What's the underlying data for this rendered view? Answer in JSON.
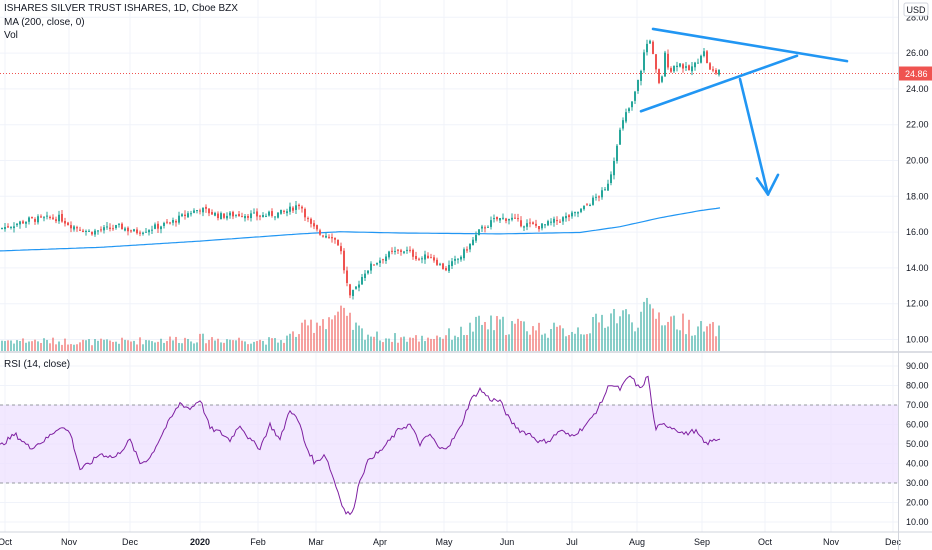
{
  "legend": {
    "title": "ISHARES SILVER TRUST ISHARES, 1D, Cboe BZX",
    "ma": "MA (200, close, 0)",
    "vol": "Vol",
    "rsi": "RSI (14, close)"
  },
  "price_axis": {
    "currency": "USD",
    "last_price_label": "24.86"
  },
  "colors": {
    "up": "#26a69a",
    "down": "#ef5350",
    "ma": "#2196f3",
    "rsi_line": "#7e1fa1",
    "rsi_band": "#ede0ff",
    "drawing": "#2196f3",
    "last_price": "#ef5350"
  },
  "chart_data": {
    "type": "candlestick",
    "title": "ISHARES SILVER TRUST ISHARES, 1D, Cboe BZX",
    "price_ylim": [
      9.2,
      28.8
    ],
    "price_ticks": [
      "10.00",
      "12.00",
      "14.00",
      "16.00",
      "18.00",
      "20.00",
      "22.00",
      "24.00",
      "26.00",
      "28.00"
    ],
    "last_price": 24.86,
    "months": [
      "Oct",
      "Nov",
      "Dec",
      "2020",
      "Feb",
      "Mar",
      "Apr",
      "May",
      "Jun",
      "Jul",
      "Aug",
      "Sep",
      "Oct",
      "Nov",
      "Dec"
    ],
    "price_keypoints": [
      [
        0,
        16.2
      ],
      [
        30,
        16.7
      ],
      [
        60,
        16.8
      ],
      [
        70,
        16.4
      ],
      [
        90,
        16.0
      ],
      [
        120,
        16.3
      ],
      [
        135,
        16.0
      ],
      [
        150,
        16.2
      ],
      [
        170,
        16.5
      ],
      [
        190,
        17.1
      ],
      [
        200,
        17.3
      ],
      [
        220,
        16.9
      ],
      [
        240,
        17.0
      ],
      [
        260,
        16.9
      ],
      [
        285,
        17.1
      ],
      [
        300,
        17.6
      ],
      [
        310,
        16.4
      ],
      [
        320,
        15.9
      ],
      [
        332,
        15.8
      ],
      [
        340,
        15.2
      ],
      [
        345,
        13.6
      ],
      [
        350,
        12.3
      ],
      [
        357,
        13.0
      ],
      [
        365,
        13.8
      ],
      [
        375,
        14.3
      ],
      [
        390,
        14.8
      ],
      [
        405,
        15.0
      ],
      [
        420,
        14.5
      ],
      [
        430,
        14.7
      ],
      [
        445,
        13.9
      ],
      [
        460,
        14.6
      ],
      [
        470,
        15.3
      ],
      [
        480,
        16.1
      ],
      [
        495,
        16.7
      ],
      [
        510,
        16.8
      ],
      [
        520,
        16.5
      ],
      [
        540,
        16.3
      ],
      [
        560,
        16.7
      ],
      [
        575,
        17.0
      ],
      [
        585,
        17.4
      ],
      [
        595,
        17.9
      ],
      [
        605,
        18.3
      ],
      [
        612,
        19.5
      ],
      [
        618,
        21.3
      ],
      [
        625,
        22.5
      ],
      [
        632,
        23.2
      ],
      [
        640,
        24.8
      ],
      [
        645,
        26.3
      ],
      [
        650,
        26.8
      ],
      [
        655,
        25.2
      ],
      [
        660,
        24.0
      ],
      [
        665,
        25.9
      ],
      [
        670,
        25.0
      ],
      [
        678,
        25.5
      ],
      [
        688,
        25.0
      ],
      [
        696,
        25.4
      ],
      [
        703,
        26.2
      ],
      [
        710,
        25.0
      ],
      [
        717,
        24.9
      ],
      [
        720,
        25.2
      ]
    ],
    "ma_keypoints": [
      [
        0,
        14.95
      ],
      [
        100,
        15.15
      ],
      [
        200,
        15.5
      ],
      [
        300,
        15.9
      ],
      [
        340,
        16.02
      ],
      [
        400,
        15.95
      ],
      [
        500,
        15.9
      ],
      [
        580,
        15.98
      ],
      [
        620,
        16.3
      ],
      [
        660,
        16.8
      ],
      [
        700,
        17.2
      ],
      [
        720,
        17.35
      ]
    ],
    "volume_keypoints": [
      [
        0,
        12
      ],
      [
        100,
        10
      ],
      [
        200,
        14
      ],
      [
        280,
        11
      ],
      [
        300,
        22
      ],
      [
        320,
        35
      ],
      [
        340,
        40
      ],
      [
        360,
        22
      ],
      [
        380,
        15
      ],
      [
        420,
        14
      ],
      [
        460,
        20
      ],
      [
        480,
        30
      ],
      [
        520,
        28
      ],
      [
        560,
        22
      ],
      [
        590,
        26
      ],
      [
        612,
        42
      ],
      [
        635,
        35
      ],
      [
        650,
        45
      ],
      [
        670,
        35
      ],
      [
        700,
        25
      ],
      [
        720,
        23
      ]
    ],
    "rsi_ylim": [
      5,
      95
    ],
    "rsi_ticks": [
      "10.00",
      "20.00",
      "30.00",
      "40.00",
      "50.00",
      "60.00",
      "70.00",
      "80.00",
      "90.00"
    ],
    "rsi_band": [
      30,
      70
    ],
    "rsi_keypoints": [
      [
        0,
        49
      ],
      [
        15,
        55
      ],
      [
        30,
        48
      ],
      [
        45,
        52
      ],
      [
        60,
        59
      ],
      [
        70,
        56
      ],
      [
        80,
        37
      ],
      [
        90,
        40
      ],
      [
        100,
        45
      ],
      [
        115,
        43
      ],
      [
        130,
        52
      ],
      [
        140,
        40
      ],
      [
        150,
        43
      ],
      [
        165,
        58
      ],
      [
        180,
        71
      ],
      [
        190,
        68
      ],
      [
        200,
        73
      ],
      [
        210,
        58
      ],
      [
        220,
        56
      ],
      [
        230,
        52
      ],
      [
        240,
        60
      ],
      [
        250,
        52
      ],
      [
        260,
        48
      ],
      [
        270,
        60
      ],
      [
        280,
        52
      ],
      [
        290,
        68
      ],
      [
        300,
        60
      ],
      [
        305,
        50
      ],
      [
        315,
        40
      ],
      [
        325,
        45
      ],
      [
        335,
        30
      ],
      [
        345,
        15
      ],
      [
        352,
        14
      ],
      [
        360,
        32
      ],
      [
        370,
        43
      ],
      [
        380,
        46
      ],
      [
        390,
        52
      ],
      [
        400,
        58
      ],
      [
        410,
        60
      ],
      [
        420,
        50
      ],
      [
        430,
        55
      ],
      [
        440,
        47
      ],
      [
        450,
        50
      ],
      [
        460,
        58
      ],
      [
        470,
        72
      ],
      [
        480,
        78
      ],
      [
        490,
        73
      ],
      [
        500,
        72
      ],
      [
        510,
        62
      ],
      [
        520,
        57
      ],
      [
        530,
        55
      ],
      [
        540,
        51
      ],
      [
        550,
        52
      ],
      [
        560,
        57
      ],
      [
        570,
        54
      ],
      [
        580,
        57
      ],
      [
        590,
        62
      ],
      [
        600,
        70
      ],
      [
        610,
        81
      ],
      [
        620,
        78
      ],
      [
        630,
        85
      ],
      [
        640,
        78
      ],
      [
        648,
        85
      ],
      [
        655,
        58
      ],
      [
        665,
        60
      ],
      [
        675,
        58
      ],
      [
        685,
        55
      ],
      [
        695,
        57
      ],
      [
        705,
        50
      ],
      [
        715,
        52
      ],
      [
        720,
        53
      ]
    ],
    "trendlines": [
      {
        "from": [
          653,
          27.35
        ],
        "to": [
          847,
          25.55
        ]
      },
      {
        "from": [
          641,
          22.75
        ],
        "to": [
          797,
          25.85
        ]
      },
      {
        "from": [
          740,
          24.55
        ],
        "to": [
          768,
          18.1
        ]
      },
      {
        "from": [
          768,
          18.1
        ],
        "to": [
          757,
          19.0
        ]
      },
      {
        "from": [
          768,
          18.1
        ],
        "to": [
          778,
          19.2
        ]
      }
    ]
  }
}
